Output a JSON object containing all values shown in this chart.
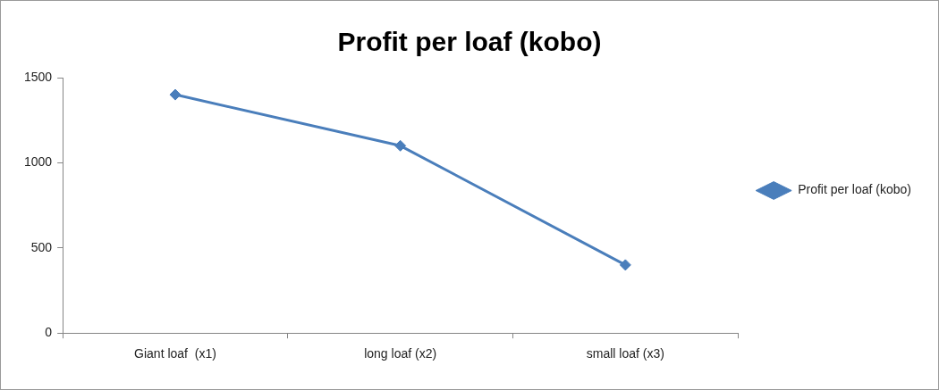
{
  "chart_data": {
    "type": "line",
    "title": "Profit per loaf (kobo)",
    "categories": [
      "Giant loaf  (x1)",
      "long loaf (x2)",
      "small loaf (x3)"
    ],
    "series": [
      {
        "name": "Profit per loaf (kobo)",
        "color": "#4a7ebb",
        "values": [
          1400,
          1100,
          400
        ]
      }
    ],
    "ylim": [
      0,
      1500
    ],
    "yticks": [
      0,
      500,
      1000,
      1500
    ],
    "grid": false,
    "legend": "right",
    "marker": "diamond"
  }
}
